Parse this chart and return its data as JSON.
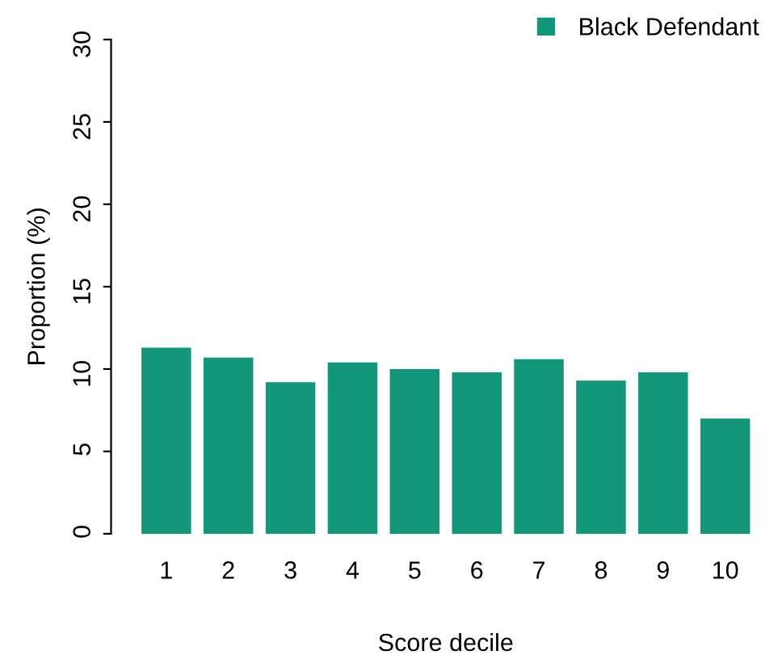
{
  "chart_data": {
    "type": "bar",
    "xlabel": "Score decile",
    "ylabel": "Proportion (%)",
    "categories": [
      "1",
      "2",
      "3",
      "4",
      "5",
      "6",
      "7",
      "8",
      "9",
      "10"
    ],
    "series": [
      {
        "name": "Black Defendant",
        "color": "#14967a",
        "values": [
          11.3,
          10.7,
          9.2,
          10.4,
          10.0,
          9.8,
          10.6,
          9.3,
          9.8,
          7.0
        ]
      }
    ],
    "ylim": [
      0,
      30
    ],
    "yticks": [
      0,
      5,
      10,
      15,
      20,
      25,
      30
    ],
    "grid": false,
    "legend": "top right"
  }
}
